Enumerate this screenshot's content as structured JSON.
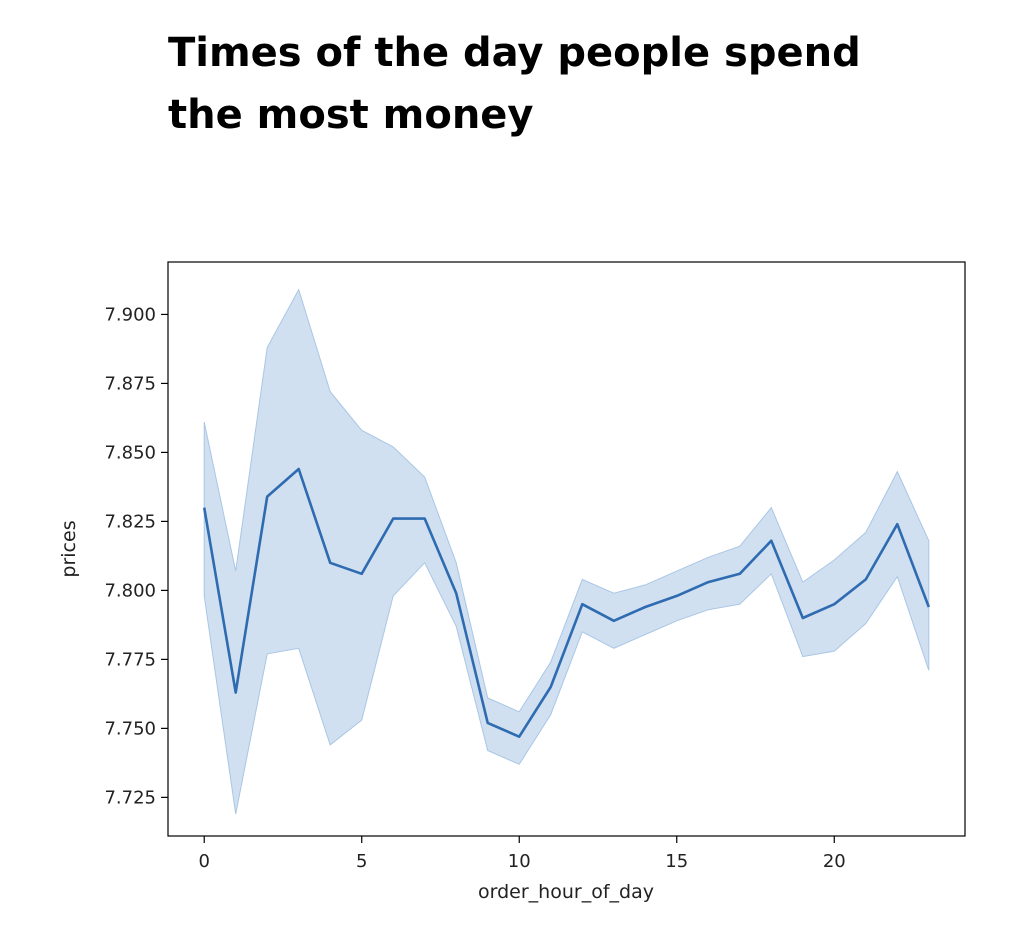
{
  "slide": {
    "title": "Times of the day people spend the most money"
  },
  "chart_data": {
    "type": "line",
    "title": "",
    "xlabel": "order_hour_of_day",
    "ylabel": "prices",
    "xlim": [
      -1.15,
      24.15
    ],
    "ylim": [
      7.711,
      7.919
    ],
    "xticks": [
      0,
      5,
      10,
      15,
      20
    ],
    "xtick_labels": [
      "0",
      "5",
      "10",
      "15",
      "20"
    ],
    "yticks": [
      7.725,
      7.75,
      7.775,
      7.8,
      7.825,
      7.85,
      7.875,
      7.9
    ],
    "ytick_labels": [
      "7.725",
      "7.750",
      "7.775",
      "7.800",
      "7.825",
      "7.850",
      "7.875",
      "7.900"
    ],
    "grid": false,
    "legend": false,
    "colors": {
      "line": "#2f6bb0",
      "band": "#a9c6e5"
    },
    "x": [
      0,
      1,
      2,
      3,
      4,
      5,
      6,
      7,
      8,
      9,
      10,
      11,
      12,
      13,
      14,
      15,
      16,
      17,
      18,
      19,
      20,
      21,
      22,
      23
    ],
    "series": [
      {
        "values": [
          7.83,
          7.763,
          7.834,
          7.844,
          7.81,
          7.806,
          7.826,
          7.826,
          7.799,
          7.752,
          7.747,
          7.765,
          7.795,
          7.789,
          7.794,
          7.798,
          7.803,
          7.806,
          7.818,
          7.79,
          7.795,
          7.804,
          7.824,
          7.794
        ],
        "ci_upper": [
          7.861,
          7.807,
          7.888,
          7.909,
          7.872,
          7.858,
          7.852,
          7.841,
          7.81,
          7.761,
          7.756,
          7.774,
          7.804,
          7.799,
          7.802,
          7.807,
          7.812,
          7.816,
          7.83,
          7.803,
          7.811,
          7.821,
          7.843,
          7.818
        ],
        "ci_lower": [
          7.798,
          7.719,
          7.777,
          7.779,
          7.744,
          7.753,
          7.798,
          7.81,
          7.787,
          7.742,
          7.737,
          7.755,
          7.785,
          7.779,
          7.784,
          7.789,
          7.793,
          7.795,
          7.806,
          7.776,
          7.778,
          7.788,
          7.805,
          7.771
        ]
      }
    ]
  }
}
